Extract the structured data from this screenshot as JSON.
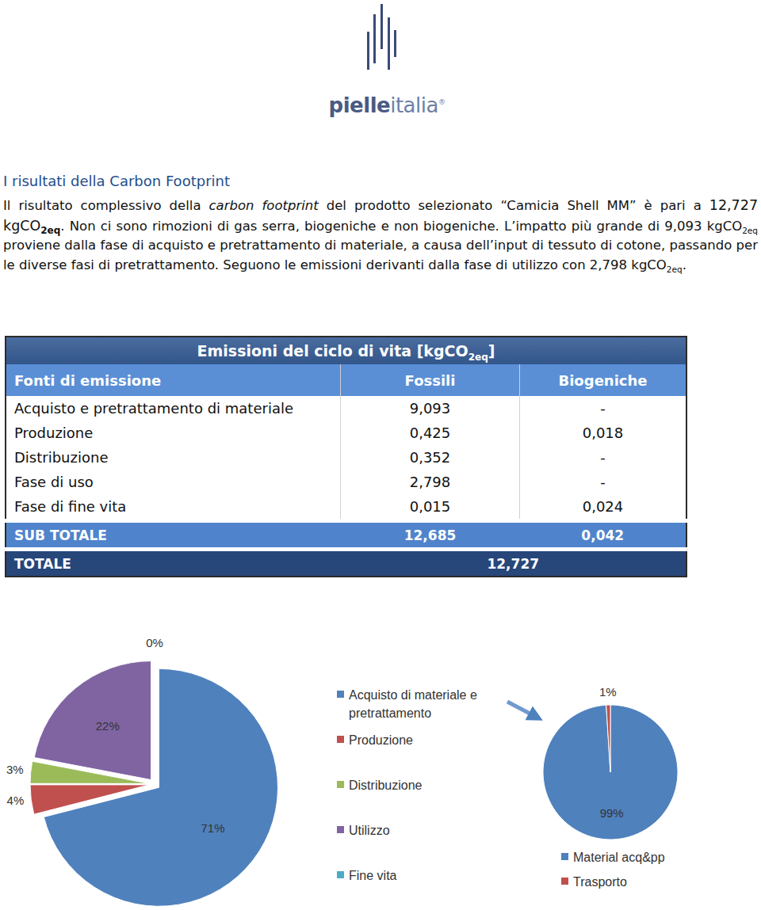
{
  "logo": [
    {
      "text": "pielle",
      "style": "bold"
    },
    {
      "text": "italia",
      "style": "plain"
    },
    {
      "text": "®",
      "style": "sup"
    }
  ],
  "heading": "I risultati della Carbon Footprint",
  "paragraph": [
    {
      "text": "Il risultato complessivo della ",
      "style": "plain"
    },
    {
      "text": "carbon footprint",
      "style": "italic"
    },
    {
      "text": " del prodotto selezionato “Camicia Shell MM” è pari a ",
      "style": "plain"
    },
    {
      "text": "12,727 kgCO",
      "style": "big"
    },
    {
      "text": "2eq",
      "style": "bigsub"
    },
    {
      "text": ". Non ci sono rimozioni di gas serra, biogeniche e non biogeniche. L’impatto più grande di 9,093 kgCO",
      "style": "plain"
    },
    {
      "text": "2eq",
      "style": "sub"
    },
    {
      "text": " proviene dalla fase di acquisto e pretrattamento di materiale, a causa dell’input di tessuto di cotone, passando per le diverse fasi di pretrattamento. Seguono le emissioni derivanti dalla fase di utilizzo con 2,798 kgCO",
      "style": "plain"
    },
    {
      "text": "2eq",
      "style": "sub"
    },
    {
      "text": ".",
      "style": "plain"
    }
  ],
  "table": {
    "title": [
      {
        "text": "Emissioni del ciclo di vita [kgCO",
        "style": "plain"
      },
      {
        "text": "2eq",
        "style": "sub"
      },
      {
        "text": "]",
        "style": "plain"
      }
    ],
    "header": [
      "Fonti di emissione",
      "Fossili",
      "Biogeniche"
    ],
    "rows": [
      [
        "Acquisto e pretrattamento di materiale",
        "9,093",
        "-"
      ],
      [
        "Produzione",
        "0,425",
        "0,018"
      ],
      [
        "Distribuzione",
        "0,352",
        "-"
      ],
      [
        "Fase di uso",
        "2,798",
        "-"
      ],
      [
        "Fase di fine vita",
        "0,015",
        "0,024"
      ]
    ],
    "subtotal": [
      "SUB TOTALE",
      "12,685",
      "0,042"
    ],
    "total": [
      "TOTALE",
      "12,727"
    ]
  },
  "chart_data": [
    {
      "type": "pie",
      "categories": [
        "Acquisto di materiale e pretrattamento",
        "Produzione",
        "Distribuzione",
        "Utilizzo",
        "Fine vita"
      ],
      "values": [
        71,
        4,
        3,
        22,
        0
      ],
      "value_labels": [
        "71%",
        "4%",
        "3%",
        "22%",
        "0%"
      ],
      "colors": [
        "#4f81bd",
        "#c0504d",
        "#9bbb59",
        "#8064a2",
        "#4bacc6"
      ],
      "data_labels": true,
      "legend": "right"
    },
    {
      "type": "pie",
      "categories": [
        "Material acq&pp",
        "Trasporto"
      ],
      "values": [
        99,
        1
      ],
      "value_labels": [
        "99%",
        "1%"
      ],
      "colors": [
        "#4f81bd",
        "#c0504d"
      ],
      "data_labels": true,
      "legend": "bottom"
    }
  ]
}
